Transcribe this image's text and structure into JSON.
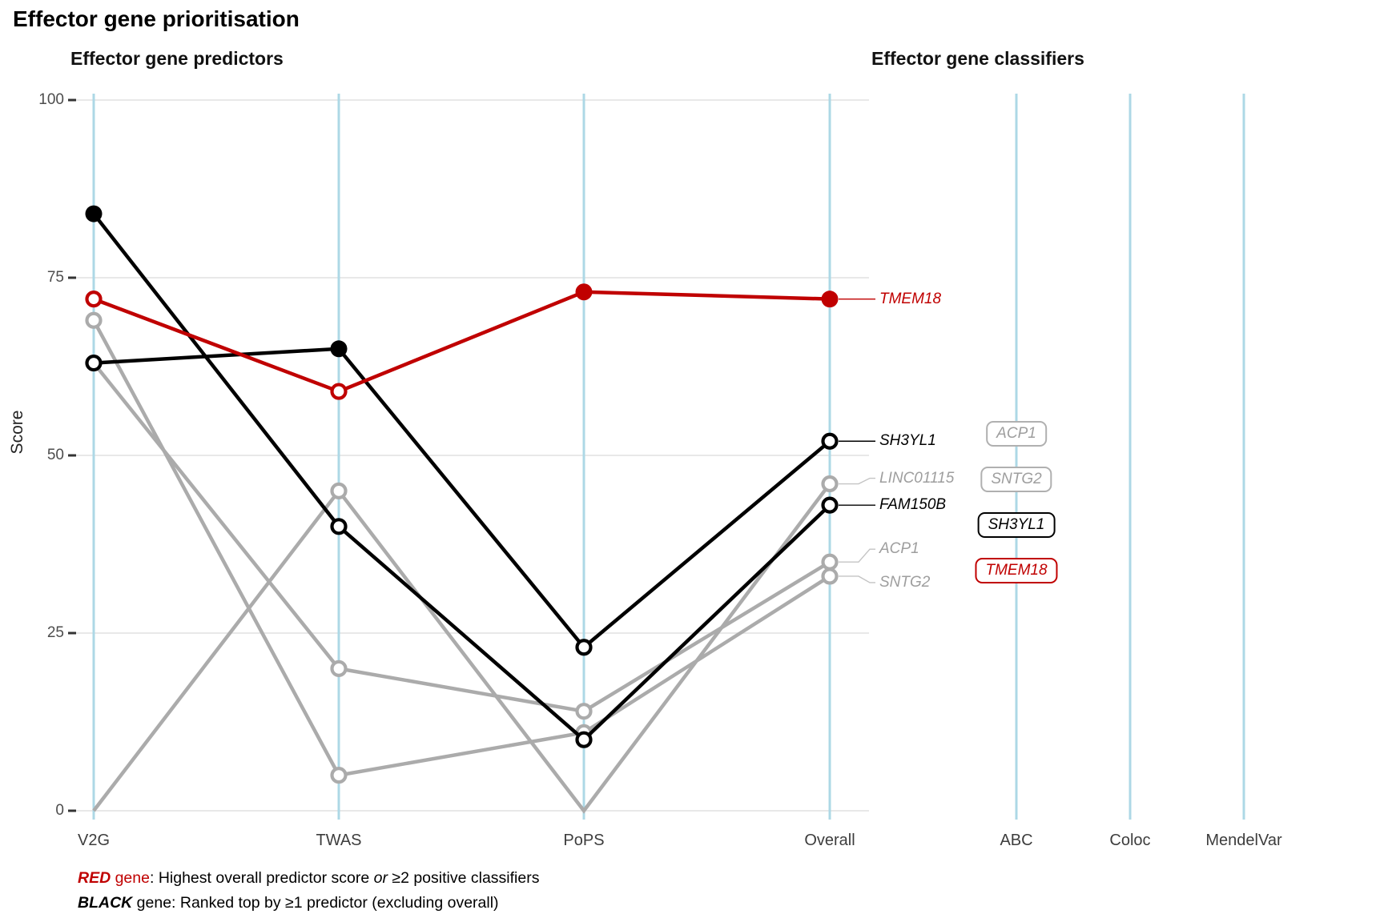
{
  "title": "Effector gene prioritisation",
  "panels": {
    "predictors": {
      "title": "Effector gene predictors"
    },
    "classifiers": {
      "title": "Effector gene classifiers"
    }
  },
  "y_axis": {
    "label": "Score",
    "ticks": [
      0,
      25,
      50,
      75,
      100
    ]
  },
  "colors": {
    "red": "#c00000",
    "black": "#000000",
    "gray": "#ababab",
    "axis_blue": "#add8e6",
    "grid": "#e8e8e8",
    "tick_dash": "#333333",
    "leader_gray": "#c4c4c4"
  },
  "chart_data": {
    "type": "line",
    "title": "Effector gene prioritisation",
    "ylabel": "Score",
    "ylim": [
      0,
      100
    ],
    "grid": "horizontal-only",
    "categories": [
      "V2G",
      "TWAS",
      "PoPS",
      "Overall"
    ],
    "classifier_categories": [
      "ABC",
      "Coloc",
      "MendelVar"
    ],
    "series": [
      {
        "name": "TMEM18",
        "color_role": "red",
        "values": [
          72,
          59,
          73,
          72
        ],
        "filled_points": [
          "PoPS",
          "Overall"
        ],
        "label_dy": 0,
        "hide_zero_markers": false
      },
      {
        "name": "SH3YL1",
        "color_role": "black",
        "values": [
          63,
          65,
          23,
          52
        ],
        "filled_points": [
          "TWAS"
        ],
        "label_dy": 0,
        "hide_zero_markers": false
      },
      {
        "name": "FAM150B",
        "color_role": "black",
        "values": [
          84,
          40,
          10,
          43
        ],
        "filled_points": [
          "V2G"
        ],
        "label_dy": 0,
        "hide_zero_markers": false
      },
      {
        "name": "LINC01115",
        "color_role": "gray",
        "values": [
          0,
          45,
          0,
          46
        ],
        "filled_points": [],
        "label_dy": -7,
        "hide_zero_markers": true
      },
      {
        "name": "ACP1",
        "color_role": "gray",
        "values": [
          63,
          20,
          14,
          35
        ],
        "filled_points": [],
        "label_dy": -16,
        "hide_zero_markers": false
      },
      {
        "name": "SNTG2",
        "color_role": "gray",
        "values": [
          69,
          5,
          11,
          33
        ],
        "filled_points": [],
        "label_dy": 8,
        "hide_zero_markers": false
      }
    ],
    "classifier_hits": {
      "ABC": [
        {
          "gene": "ACP1",
          "color_role": "gray"
        },
        {
          "gene": "SNTG2",
          "color_role": "gray"
        },
        {
          "gene": "SH3YL1",
          "color_role": "black"
        },
        {
          "gene": "TMEM18",
          "color_role": "red"
        }
      ],
      "Coloc": [],
      "MendelVar": []
    }
  },
  "legend": {
    "red": {
      "keyword": "RED",
      "gene_word": " gene",
      "text1": ": Highest overall predictor score ",
      "or_word": "or",
      "text2": " ≥2 positive classifiers"
    },
    "black": {
      "keyword": "BLACK",
      "text": " gene: Ranked top by ≥1 predictor (excluding overall)"
    }
  }
}
